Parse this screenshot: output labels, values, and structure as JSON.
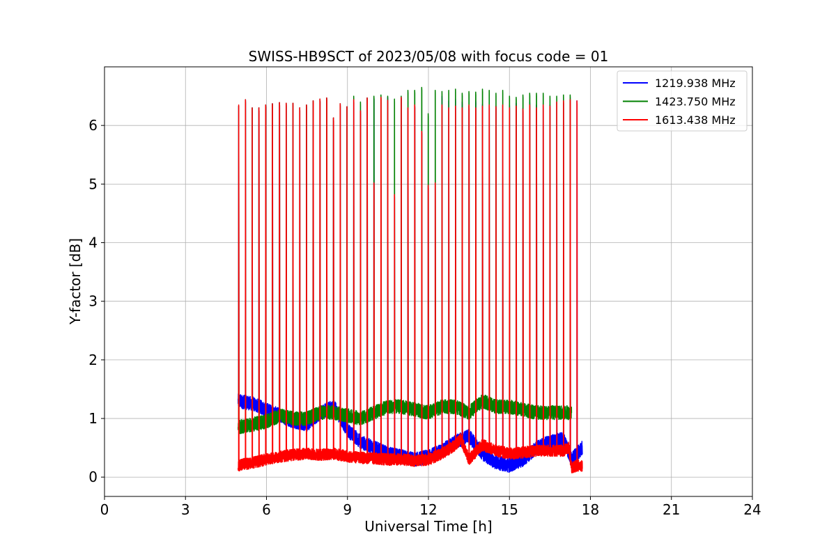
{
  "chart_data": {
    "type": "line",
    "title": "SWISS-HB9SCT of 2023/05/08 with focus code = 01",
    "xlabel": "Universal Time [h]",
    "ylabel": "Y-factor [dB]",
    "xlim": [
      0,
      24
    ],
    "ylim": [
      -0.33,
      7.0
    ],
    "xticks": [
      0,
      3,
      6,
      9,
      12,
      15,
      18,
      21,
      24
    ],
    "yticks": [
      0,
      1,
      2,
      3,
      4,
      5,
      6
    ],
    "grid": true,
    "legend_position": "top-right",
    "data_start_h": 4.95,
    "data_end_h": 17.7,
    "pulse_times_h": [
      4.97,
      5.22,
      5.47,
      5.72,
      5.97,
      6.22,
      6.48,
      6.73,
      6.98,
      7.23,
      7.48,
      7.73,
      7.98,
      8.23,
      8.48,
      8.73,
      8.98,
      9.23,
      9.48,
      9.73,
      9.98,
      10.24,
      10.49,
      10.74,
      10.99,
      11.24,
      11.49,
      11.75,
      11.99,
      12.25,
      12.5,
      12.75,
      13.0,
      13.25,
      13.5,
      13.75,
      14.0,
      14.25,
      14.5,
      14.75,
      15.0,
      15.25,
      15.5,
      15.75,
      16.0,
      16.25,
      16.5,
      16.75,
      17.0,
      17.25,
      17.5
    ],
    "series": [
      {
        "name": "1219.938 MHz",
        "color": "#0000ff",
        "baseline_x": [
          4.95,
          5.5,
          6.0,
          6.5,
          7.0,
          7.5,
          8.0,
          8.5,
          9.0,
          9.5,
          10.0,
          10.5,
          11.0,
          11.5,
          12.0,
          12.5,
          13.0,
          13.5,
          14.0,
          14.5,
          15.0,
          15.5,
          16.0,
          16.5,
          17.0,
          17.3,
          17.5,
          17.7
        ],
        "baseline_y": [
          1.3,
          1.25,
          1.15,
          1.05,
          0.95,
          0.9,
          1.1,
          1.2,
          0.8,
          0.6,
          0.5,
          0.4,
          0.35,
          0.3,
          0.35,
          0.45,
          0.6,
          0.7,
          0.4,
          0.25,
          0.2,
          0.3,
          0.5,
          0.6,
          0.65,
          0.3,
          0.4,
          0.5
        ],
        "noise": 0.12,
        "peaks": [
          6.33,
          6.44,
          6.3,
          6.3,
          6.35,
          6.37,
          6.39,
          6.38,
          6.38,
          6.3,
          6.35,
          6.42,
          6.45,
          6.47,
          6.13,
          6.37,
          6.32,
          6.44,
          6.25,
          6.47,
          6.48,
          5.0,
          6.48,
          4.82,
          6.48,
          6.3,
          6.35,
          5.9,
          4.98,
          5.02,
          6.5,
          6.42,
          6.45,
          6.4,
          6.33,
          6.43,
          6.36,
          6.35,
          6.33,
          6.35,
          6.35,
          6.38,
          6.3,
          6.4,
          6.35,
          6.38,
          6.35,
          6.4,
          6.42,
          6.44,
          6.42
        ]
      },
      {
        "name": "1423.750 MHz",
        "color": "#008000",
        "baseline_x": [
          4.95,
          5.5,
          6.0,
          6.5,
          7.0,
          7.5,
          8.0,
          8.5,
          9.0,
          9.5,
          10.0,
          10.5,
          11.0,
          11.5,
          12.0,
          12.5,
          13.0,
          13.5,
          14.0,
          14.5,
          15.0,
          15.5,
          16.0,
          16.5,
          17.0,
          17.3
        ],
        "baseline_y": [
          0.85,
          0.9,
          0.95,
          1.05,
          1.0,
          1.0,
          1.1,
          1.1,
          1.05,
          1.0,
          1.1,
          1.2,
          1.2,
          1.15,
          1.1,
          1.2,
          1.2,
          1.1,
          1.3,
          1.2,
          1.2,
          1.15,
          1.1,
          1.1,
          1.1,
          1.1
        ],
        "noise": 0.12,
        "peaks": [
          6.33,
          6.44,
          6.3,
          6.3,
          6.35,
          6.37,
          6.39,
          6.38,
          6.38,
          6.3,
          6.35,
          6.42,
          6.45,
          6.47,
          6.13,
          6.37,
          6.32,
          6.5,
          6.4,
          6.47,
          6.5,
          6.52,
          6.5,
          6.45,
          6.5,
          6.6,
          6.6,
          6.65,
          6.2,
          6.6,
          6.58,
          6.6,
          6.62,
          6.55,
          6.58,
          6.57,
          6.62,
          6.6,
          6.55,
          6.6,
          6.5,
          6.48,
          6.52,
          6.55,
          6.55,
          6.55,
          6.5,
          6.5,
          6.52,
          6.52,
          6.5
        ]
      },
      {
        "name": "1613.438 MHz",
        "color": "#ff0000",
        "baseline_x": [
          4.95,
          5.5,
          6.0,
          6.5,
          7.0,
          7.5,
          8.0,
          8.5,
          9.0,
          9.5,
          10.0,
          10.5,
          11.0,
          11.5,
          12.0,
          12.5,
          13.0,
          13.2,
          13.5,
          14.0,
          14.5,
          15.0,
          15.5,
          16.0,
          16.5,
          17.0,
          17.2,
          17.3,
          17.5,
          17.7
        ],
        "baseline_y": [
          0.2,
          0.25,
          0.3,
          0.35,
          0.38,
          0.4,
          0.38,
          0.4,
          0.35,
          0.33,
          0.32,
          0.3,
          0.3,
          0.28,
          0.3,
          0.4,
          0.55,
          0.65,
          0.3,
          0.55,
          0.45,
          0.4,
          0.42,
          0.45,
          0.45,
          0.45,
          0.5,
          0.15,
          0.2,
          0.2
        ],
        "noise": 0.1,
        "peaks": [
          6.35,
          6.44,
          6.3,
          6.3,
          6.35,
          6.37,
          6.39,
          6.38,
          6.38,
          6.3,
          6.35,
          6.42,
          6.45,
          6.47,
          6.13,
          6.37,
          6.32,
          6.44,
          6.25,
          6.47,
          5.02,
          6.48,
          6.43,
          4.82,
          6.48,
          6.3,
          6.35,
          5.9,
          4.98,
          5.02,
          6.35,
          6.3,
          6.33,
          6.3,
          6.35,
          6.3,
          6.33,
          6.35,
          6.32,
          6.35,
          6.3,
          6.33,
          6.28,
          6.35,
          6.3,
          6.35,
          6.33,
          6.4,
          6.42,
          6.44,
          6.42
        ]
      }
    ]
  }
}
